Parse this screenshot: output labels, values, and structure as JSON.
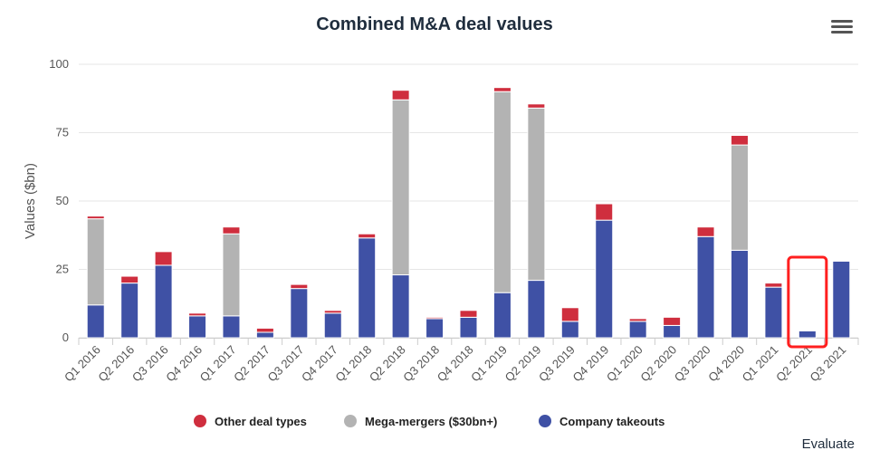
{
  "chart_data": {
    "type": "bar",
    "stacked": true,
    "title": "Combined M&A deal values",
    "ylabel": "Values ($bn)",
    "xlabel": "",
    "ylim": [
      0,
      100
    ],
    "yticks": [
      0,
      25,
      50,
      75,
      100
    ],
    "grid": true,
    "legend_position": "bottom",
    "categories": [
      "Q1 2016",
      "Q2 2016",
      "Q3 2016",
      "Q4 2016",
      "Q1 2017",
      "Q2 2017",
      "Q3 2017",
      "Q4 2017",
      "Q1 2018",
      "Q2 2018",
      "Q3 2018",
      "Q4 2018",
      "Q1 2019",
      "Q2 2019",
      "Q3 2019",
      "Q4 2019",
      "Q1 2020",
      "Q2 2020",
      "Q3 2020",
      "Q4 2020",
      "Q1 2021",
      "Q2 2021",
      "Q3 2021"
    ],
    "series": [
      {
        "name": "Company takeouts",
        "color": "#3f51a5",
        "values": [
          12,
          20,
          26.5,
          8,
          8,
          2,
          18,
          9,
          36.5,
          23,
          7,
          7.5,
          16.5,
          21,
          6,
          43,
          6,
          4.5,
          37,
          32,
          18.5,
          2.5,
          28
        ]
      },
      {
        "name": "Mega-mergers ($30bn+)",
        "color": "#b3b3b3",
        "values": [
          31.5,
          0,
          0,
          0,
          30,
          0,
          0,
          0,
          0,
          64,
          0,
          0,
          73.5,
          63,
          0,
          0,
          0,
          0,
          0,
          38.5,
          0,
          0,
          0
        ]
      },
      {
        "name": "Other deal types",
        "color": "#cf2e3e",
        "values": [
          1,
          2.5,
          5,
          1,
          2.5,
          1.5,
          1.5,
          1,
          1.5,
          3.5,
          0.5,
          2.5,
          1.5,
          1.5,
          5,
          6,
          1,
          3,
          3.5,
          3.5,
          1.5,
          0,
          0
        ]
      }
    ],
    "legend": [
      {
        "name": "Other deal types",
        "color": "#cf2e3e"
      },
      {
        "name": "Mega-mergers ($30bn+)",
        "color": "#b3b3b3"
      },
      {
        "name": "Company takeouts",
        "color": "#3f51a5"
      }
    ],
    "highlight": {
      "category": "Q2 2021",
      "color": "#ff1f1f"
    }
  },
  "credit": "Evaluate"
}
